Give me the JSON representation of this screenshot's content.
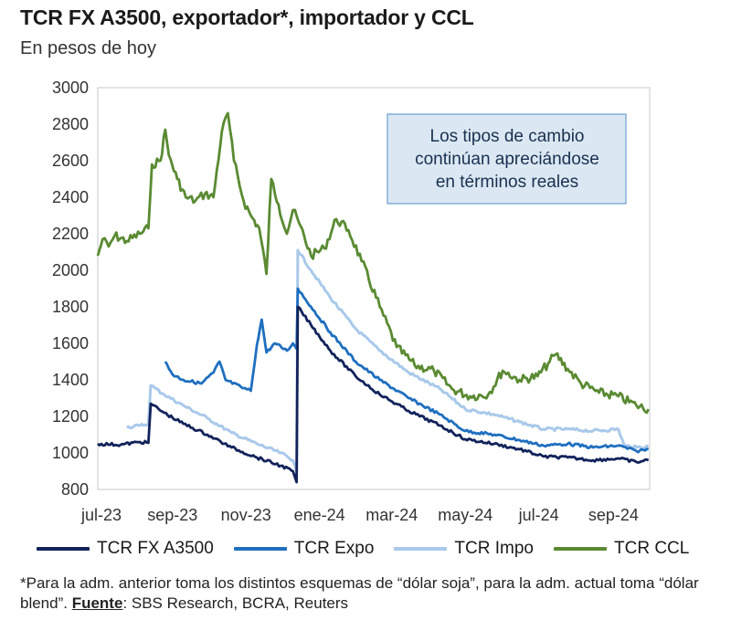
{
  "header": {
    "title": "TCR FX A3500, exportador*, importador y CCL",
    "subtitle": "En pesos de hoy"
  },
  "annotation": {
    "lines": [
      "Los tipos de cambio",
      "continúan apreciándose",
      "en términos reales"
    ]
  },
  "footnote": {
    "text": "*Para la adm. anterior toma los distintos esquemas de “dólar soja”, para la adm. actual toma “dólar blend”. ",
    "source_label": "Fuente",
    "source_text": ": SBS Research, BCRA, Reuters"
  },
  "colors": {
    "a3500": "#12235a",
    "expo": "#1f6fbf",
    "impo": "#a9c9ea",
    "ccl": "#5a8a32"
  },
  "chart_data": {
    "type": "line",
    "title": "TCR FX A3500, exportador*, importador y CCL",
    "subtitle": "En pesos de hoy",
    "x_ticks": [
      "jul-23",
      "sep-23",
      "nov-23",
      "ene-24",
      "mar-24",
      "may-24",
      "jul-24",
      "sep-24"
    ],
    "x_range": [
      "2023-07-01",
      "2024-10-01"
    ],
    "ylim": [
      800,
      3000
    ],
    "y_ticks": [
      800,
      1000,
      1200,
      1400,
      1600,
      1800,
      2000,
      2200,
      2400,
      2600,
      2800,
      3000
    ],
    "grid": false,
    "legend_position": "bottom",
    "series": [
      {
        "name": "TCR FX A3500",
        "color_key": "a3500",
        "points": [
          [
            "2023-07-01",
            1050
          ],
          [
            "2023-07-20",
            1045
          ],
          [
            "2023-08-05",
            1060
          ],
          [
            "2023-08-12",
            1055
          ],
          [
            "2023-08-14",
            1270
          ],
          [
            "2023-08-25",
            1220
          ],
          [
            "2023-09-10",
            1160
          ],
          [
            "2023-09-30",
            1100
          ],
          [
            "2023-10-20",
            1030
          ],
          [
            "2023-11-10",
            975
          ],
          [
            "2023-11-30",
            930
          ],
          [
            "2023-12-10",
            900
          ],
          [
            "2023-12-13",
            840
          ],
          [
            "2023-12-14",
            1800
          ],
          [
            "2023-12-25",
            1700
          ],
          [
            "2024-01-10",
            1560
          ],
          [
            "2024-01-31",
            1420
          ],
          [
            "2024-02-20",
            1320
          ],
          [
            "2024-03-15",
            1230
          ],
          [
            "2024-04-10",
            1150
          ],
          [
            "2024-05-01",
            1075
          ],
          [
            "2024-05-25",
            1050
          ],
          [
            "2024-06-15",
            1020
          ],
          [
            "2024-07-05",
            980
          ],
          [
            "2024-07-25",
            975
          ],
          [
            "2024-08-15",
            960
          ],
          [
            "2024-09-05",
            970
          ],
          [
            "2024-09-20",
            950
          ],
          [
            "2024-09-30",
            960
          ]
        ]
      },
      {
        "name": "TCR Expo",
        "color_key": "expo",
        "points": [
          [
            "2023-08-26",
            1500
          ],
          [
            "2023-09-01",
            1430
          ],
          [
            "2023-09-10",
            1400
          ],
          [
            "2023-09-25",
            1380
          ],
          [
            "2023-10-05",
            1440
          ],
          [
            "2023-10-10",
            1500
          ],
          [
            "2023-10-15",
            1400
          ],
          [
            "2023-10-28",
            1360
          ],
          [
            "2023-11-05",
            1340
          ],
          [
            "2023-11-10",
            1590
          ],
          [
            "2023-11-14",
            1730
          ],
          [
            "2023-11-18",
            1550
          ],
          [
            "2023-11-25",
            1600
          ],
          [
            "2023-12-05",
            1560
          ],
          [
            "2023-12-10",
            1600
          ],
          [
            "2023-12-13",
            1570
          ],
          [
            "2023-12-14",
            1900
          ],
          [
            "2023-12-25",
            1800
          ],
          [
            "2024-01-10",
            1660
          ],
          [
            "2024-01-31",
            1500
          ],
          [
            "2024-02-20",
            1400
          ],
          [
            "2024-03-15",
            1300
          ],
          [
            "2024-04-10",
            1210
          ],
          [
            "2024-05-01",
            1120
          ],
          [
            "2024-05-25",
            1100
          ],
          [
            "2024-06-15",
            1070
          ],
          [
            "2024-07-05",
            1040
          ],
          [
            "2024-07-25",
            1050
          ],
          [
            "2024-08-15",
            1030
          ],
          [
            "2024-09-05",
            1040
          ],
          [
            "2024-09-20",
            1010
          ],
          [
            "2024-09-30",
            1020
          ]
        ]
      },
      {
        "name": "TCR Impo",
        "color_key": "impo",
        "points": [
          [
            "2023-07-25",
            1140
          ],
          [
            "2023-08-05",
            1150
          ],
          [
            "2023-08-12",
            1160
          ],
          [
            "2023-08-14",
            1370
          ],
          [
            "2023-08-25",
            1320
          ],
          [
            "2023-09-10",
            1260
          ],
          [
            "2023-09-30",
            1190
          ],
          [
            "2023-10-20",
            1110
          ],
          [
            "2023-11-10",
            1050
          ],
          [
            "2023-11-30",
            1000
          ],
          [
            "2023-12-10",
            960
          ],
          [
            "2023-12-13",
            900
          ],
          [
            "2023-12-14",
            2110
          ],
          [
            "2023-12-25",
            2000
          ],
          [
            "2024-01-10",
            1850
          ],
          [
            "2024-01-31",
            1680
          ],
          [
            "2024-02-20",
            1560
          ],
          [
            "2024-03-15",
            1440
          ],
          [
            "2024-04-10",
            1350
          ],
          [
            "2024-05-01",
            1240
          ],
          [
            "2024-05-25",
            1210
          ],
          [
            "2024-06-15",
            1170
          ],
          [
            "2024-07-05",
            1130
          ],
          [
            "2024-07-25",
            1130
          ],
          [
            "2024-08-15",
            1120
          ],
          [
            "2024-09-05",
            1130
          ],
          [
            "2024-09-10",
            1040
          ],
          [
            "2024-09-20",
            1030
          ],
          [
            "2024-09-30",
            1035
          ]
        ]
      },
      {
        "name": "TCR CCL",
        "color_key": "ccl",
        "points": [
          [
            "2023-07-01",
            2080
          ],
          [
            "2023-07-05",
            2170
          ],
          [
            "2023-07-10",
            2130
          ],
          [
            "2023-07-15",
            2190
          ],
          [
            "2023-07-25",
            2160
          ],
          [
            "2023-08-05",
            2200
          ],
          [
            "2023-08-12",
            2230
          ],
          [
            "2023-08-15",
            2580
          ],
          [
            "2023-08-22",
            2600
          ],
          [
            "2023-08-26",
            2770
          ],
          [
            "2023-08-29",
            2630
          ],
          [
            "2023-09-05",
            2500
          ],
          [
            "2023-09-12",
            2400
          ],
          [
            "2023-09-20",
            2380
          ],
          [
            "2023-09-28",
            2420
          ],
          [
            "2023-10-05",
            2400
          ],
          [
            "2023-10-12",
            2760
          ],
          [
            "2023-10-17",
            2860
          ],
          [
            "2023-10-22",
            2600
          ],
          [
            "2023-10-30",
            2380
          ],
          [
            "2023-11-05",
            2300
          ],
          [
            "2023-11-12",
            2230
          ],
          [
            "2023-11-18",
            1980
          ],
          [
            "2023-11-22",
            2500
          ],
          [
            "2023-11-28",
            2360
          ],
          [
            "2023-12-05",
            2200
          ],
          [
            "2023-12-10",
            2330
          ],
          [
            "2023-12-15",
            2260
          ],
          [
            "2023-12-25",
            2080
          ],
          [
            "2024-01-05",
            2120
          ],
          [
            "2024-01-15",
            2280
          ],
          [
            "2024-01-25",
            2220
          ],
          [
            "2024-02-05",
            2050
          ],
          [
            "2024-02-20",
            1800
          ],
          [
            "2024-03-05",
            1580
          ],
          [
            "2024-03-20",
            1480
          ],
          [
            "2024-04-05",
            1450
          ],
          [
            "2024-04-20",
            1350
          ],
          [
            "2024-05-05",
            1310
          ],
          [
            "2024-05-20",
            1320
          ],
          [
            "2024-06-01",
            1450
          ],
          [
            "2024-06-15",
            1400
          ],
          [
            "2024-06-30",
            1420
          ],
          [
            "2024-07-10",
            1500
          ],
          [
            "2024-07-15",
            1540
          ],
          [
            "2024-07-25",
            1460
          ],
          [
            "2024-08-05",
            1380
          ],
          [
            "2024-08-20",
            1330
          ],
          [
            "2024-09-05",
            1310
          ],
          [
            "2024-09-20",
            1260
          ],
          [
            "2024-09-30",
            1240
          ]
        ]
      }
    ]
  }
}
